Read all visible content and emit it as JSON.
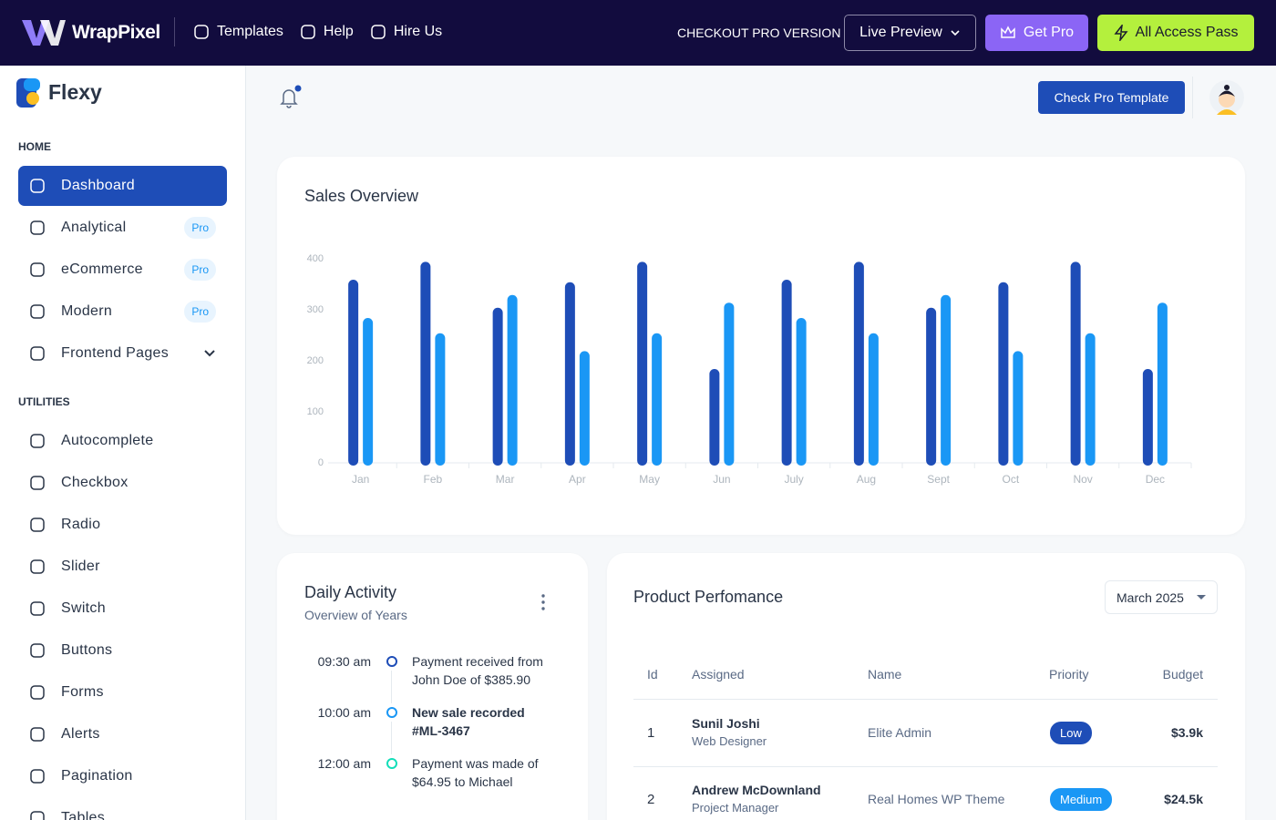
{
  "topbar": {
    "brand": "WrapPixel",
    "links": [
      "Templates",
      "Help",
      "Hire Us"
    ],
    "checkout": "CHECKOUT PRO VERSION",
    "live_preview": "Live Preview",
    "get_pro": "Get Pro",
    "all_access": "All Access Pass"
  },
  "sidebar": {
    "brand": "Flexy",
    "sections": [
      {
        "title": "HOME",
        "items": [
          {
            "label": "Dashboard",
            "active": true
          },
          {
            "label": "Analytical",
            "badge": "Pro"
          },
          {
            "label": "eCommerce",
            "badge": "Pro"
          },
          {
            "label": "Modern",
            "badge": "Pro"
          },
          {
            "label": "Frontend Pages",
            "expandable": true
          }
        ]
      },
      {
        "title": "UTILITIES",
        "items": [
          {
            "label": "Autocomplete"
          },
          {
            "label": "Checkbox"
          },
          {
            "label": "Radio"
          },
          {
            "label": "Slider"
          },
          {
            "label": "Switch"
          },
          {
            "label": "Buttons"
          },
          {
            "label": "Forms"
          },
          {
            "label": "Alerts"
          },
          {
            "label": "Pagination"
          },
          {
            "label": "Tables"
          }
        ]
      }
    ]
  },
  "header": {
    "button": "Check Pro Template"
  },
  "chart_data": {
    "type": "bar",
    "title": "Sales Overview",
    "categories": [
      "Jan",
      "Feb",
      "Mar",
      "Apr",
      "May",
      "Jun",
      "July",
      "Aug",
      "Sept",
      "Oct",
      "Nov",
      "Dec"
    ],
    "series": [
      {
        "color": "#1e4db7",
        "values": [
          350,
          385,
          295,
          345,
          385,
          175,
          350,
          385,
          295,
          345,
          385,
          175
        ]
      },
      {
        "color": "#1a97f5",
        "values": [
          275,
          245,
          320,
          210,
          245,
          305,
          275,
          245,
          320,
          210,
          245,
          305
        ]
      }
    ],
    "ylim": [
      0,
      400
    ],
    "yticks": [
      0,
      100,
      200,
      300,
      400
    ],
    "grid": false
  },
  "daily_activity": {
    "title": "Daily Activity",
    "subtitle": "Overview of Years",
    "items": [
      {
        "time": "09:30 am",
        "text": "Payment received from John Doe of $385.90",
        "color": "#1e4db7"
      },
      {
        "time": "10:00 am",
        "text": "New sale recorded #ML-3467",
        "bold": true,
        "color": "#1a97f5"
      },
      {
        "time": "12:00 am",
        "text": "Payment was made of $64.95 to Michael",
        "color": "#13deb9"
      }
    ]
  },
  "product_performance": {
    "title": "Product Perfomance",
    "filter": "March 2025",
    "columns": [
      "Id",
      "Assigned",
      "Name",
      "Priority",
      "Budget"
    ],
    "rows": [
      {
        "id": "1",
        "assigned": "Sunil Joshi",
        "role": "Web Designer",
        "name": "Elite Admin",
        "priority": "Low",
        "priority_color": "#1e4db7",
        "budget": "$3.9k"
      },
      {
        "id": "2",
        "assigned": "Andrew McDownland",
        "role": "Project Manager",
        "name": "Real Homes WP Theme",
        "priority": "Medium",
        "priority_color": "#1a97f5",
        "budget": "$24.5k"
      }
    ]
  }
}
